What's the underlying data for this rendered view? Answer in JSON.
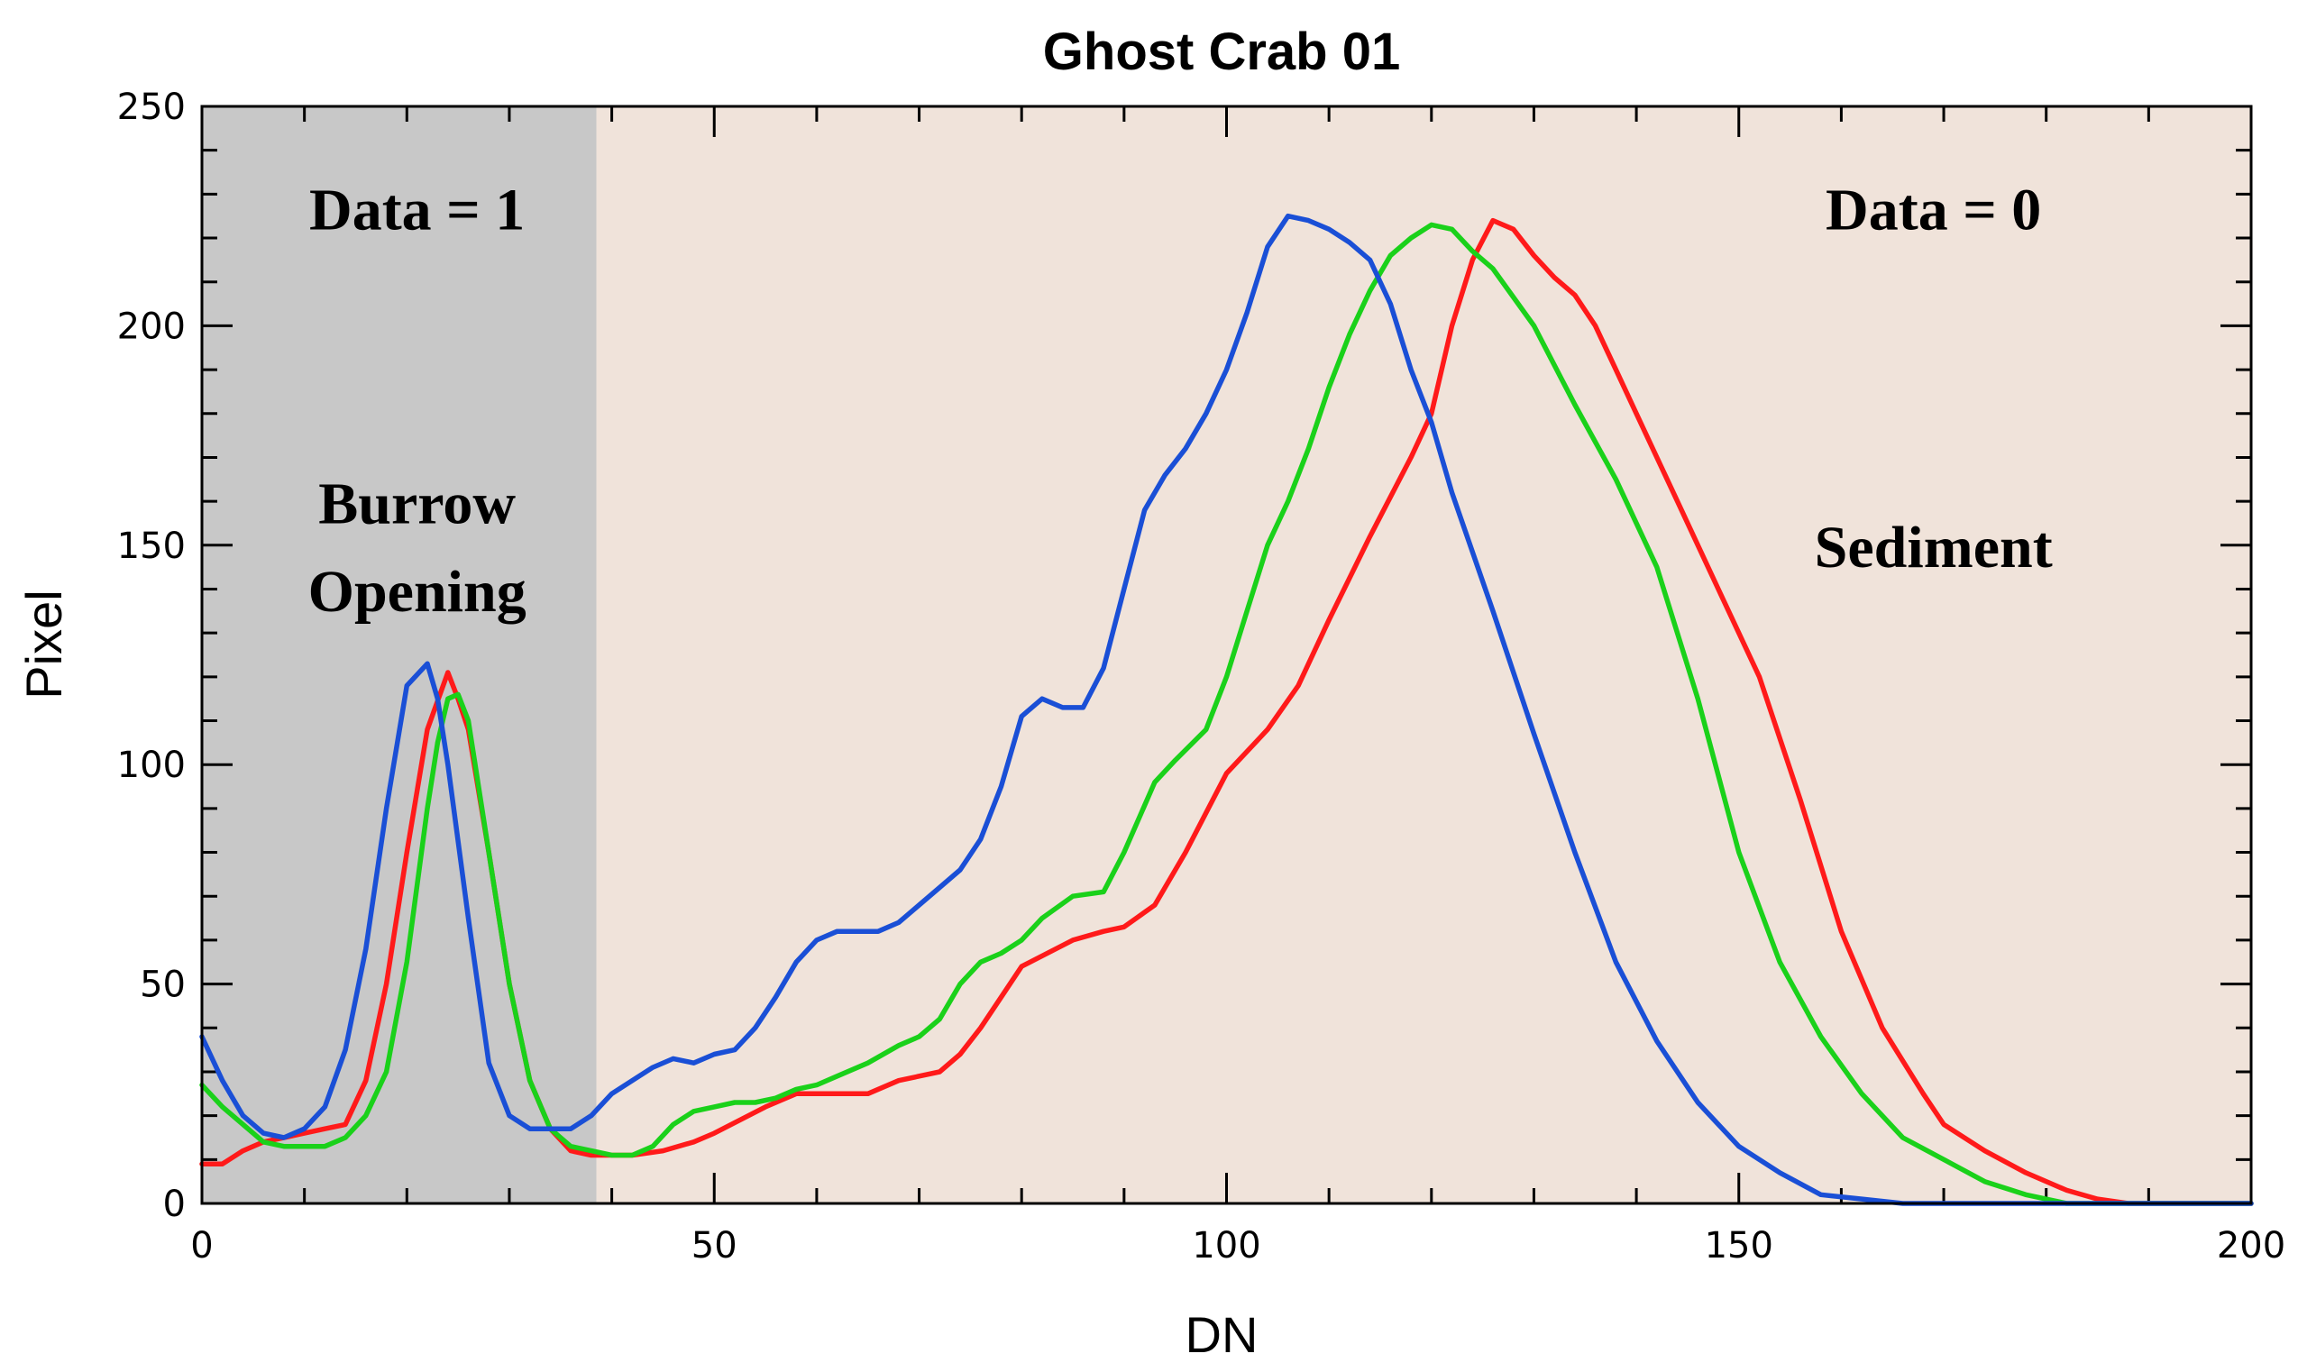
{
  "chart_data": {
    "type": "line",
    "title": "Ghost Crab 01",
    "xlabel": "DN",
    "ylabel": "Pixel",
    "xlim": [
      0,
      200
    ],
    "ylim": [
      0,
      250
    ],
    "xticks": [
      0,
      50,
      100,
      150,
      200
    ],
    "yticks": [
      0,
      50,
      100,
      150,
      200,
      250
    ],
    "colors": {
      "red": "#ff1a1a",
      "green": "#1ad11a",
      "blue": "#1a4fd6",
      "region_burrow": "#c8c8c8",
      "region_sediment": "#f0e3da"
    },
    "regions": [
      {
        "name": "burrow",
        "x_start": 0,
        "x_end": 38.5,
        "color_key": "region_burrow"
      },
      {
        "name": "sediment",
        "x_start": 38.5,
        "x_end": 200,
        "color_key": "region_sediment"
      }
    ],
    "annotations": {
      "data1": {
        "text": "Data = 1",
        "x": 21,
        "y": 222
      },
      "burrow1": {
        "text": "Burrow",
        "x": 21,
        "y": 155
      },
      "burrow2": {
        "text": "Opening",
        "x": 21,
        "y": 135
      },
      "data0": {
        "text": "Data = 0",
        "x": 169,
        "y": 222
      },
      "sediment": {
        "text": "Sediment",
        "x": 169,
        "y": 145
      }
    },
    "series": [
      {
        "name": "red",
        "color_key": "red",
        "points": [
          [
            0,
            9
          ],
          [
            2,
            9
          ],
          [
            4,
            12
          ],
          [
            6,
            14
          ],
          [
            8,
            15
          ],
          [
            10,
            16
          ],
          [
            12,
            17
          ],
          [
            14,
            18
          ],
          [
            16,
            28
          ],
          [
            18,
            50
          ],
          [
            20,
            80
          ],
          [
            22,
            108
          ],
          [
            24,
            121
          ],
          [
            25,
            115
          ],
          [
            26,
            108
          ],
          [
            28,
            80
          ],
          [
            30,
            50
          ],
          [
            32,
            28
          ],
          [
            34,
            17
          ],
          [
            36,
            12
          ],
          [
            38,
            11
          ],
          [
            40,
            11
          ],
          [
            42,
            11
          ],
          [
            45,
            12
          ],
          [
            48,
            14
          ],
          [
            50,
            16
          ],
          [
            55,
            22
          ],
          [
            58,
            25
          ],
          [
            60,
            25
          ],
          [
            65,
            25
          ],
          [
            68,
            28
          ],
          [
            72,
            30
          ],
          [
            74,
            34
          ],
          [
            76,
            40
          ],
          [
            78,
            47
          ],
          [
            80,
            54
          ],
          [
            85,
            60
          ],
          [
            88,
            62
          ],
          [
            90,
            63
          ],
          [
            93,
            68
          ],
          [
            96,
            80
          ],
          [
            100,
            98
          ],
          [
            104,
            108
          ],
          [
            107,
            118
          ],
          [
            110,
            133
          ],
          [
            114,
            152
          ],
          [
            118,
            170
          ],
          [
            120,
            180
          ],
          [
            122,
            200
          ],
          [
            124,
            215
          ],
          [
            126,
            224
          ],
          [
            128,
            222
          ],
          [
            130,
            216
          ],
          [
            132,
            211
          ],
          [
            134,
            207
          ],
          [
            136,
            200
          ],
          [
            138,
            190
          ],
          [
            140,
            180
          ],
          [
            144,
            160
          ],
          [
            148,
            140
          ],
          [
            152,
            120
          ],
          [
            156,
            92
          ],
          [
            160,
            62
          ],
          [
            164,
            40
          ],
          [
            168,
            25
          ],
          [
            170,
            18
          ],
          [
            174,
            12
          ],
          [
            178,
            7
          ],
          [
            182,
            3
          ],
          [
            185,
            1
          ],
          [
            188,
            0
          ],
          [
            200,
            0
          ]
        ]
      },
      {
        "name": "green",
        "color_key": "green",
        "points": [
          [
            0,
            27
          ],
          [
            2,
            22
          ],
          [
            4,
            18
          ],
          [
            6,
            14
          ],
          [
            8,
            13
          ],
          [
            10,
            13
          ],
          [
            12,
            13
          ],
          [
            14,
            15
          ],
          [
            16,
            20
          ],
          [
            18,
            30
          ],
          [
            20,
            55
          ],
          [
            22,
            90
          ],
          [
            23,
            105
          ],
          [
            24,
            115
          ],
          [
            25,
            116
          ],
          [
            26,
            110
          ],
          [
            28,
            80
          ],
          [
            30,
            50
          ],
          [
            32,
            28
          ],
          [
            34,
            17
          ],
          [
            36,
            13
          ],
          [
            38,
            12
          ],
          [
            40,
            11
          ],
          [
            42,
            11
          ],
          [
            44,
            13
          ],
          [
            46,
            18
          ],
          [
            48,
            21
          ],
          [
            50,
            22
          ],
          [
            52,
            23
          ],
          [
            54,
            23
          ],
          [
            56,
            24
          ],
          [
            58,
            26
          ],
          [
            60,
            27
          ],
          [
            62,
            29
          ],
          [
            65,
            32
          ],
          [
            68,
            36
          ],
          [
            70,
            38
          ],
          [
            72,
            42
          ],
          [
            74,
            50
          ],
          [
            76,
            55
          ],
          [
            78,
            57
          ],
          [
            80,
            60
          ],
          [
            82,
            65
          ],
          [
            85,
            70
          ],
          [
            88,
            71
          ],
          [
            90,
            80
          ],
          [
            93,
            96
          ],
          [
            95,
            101
          ],
          [
            98,
            108
          ],
          [
            100,
            120
          ],
          [
            102,
            135
          ],
          [
            104,
            150
          ],
          [
            106,
            160
          ],
          [
            108,
            172
          ],
          [
            110,
            186
          ],
          [
            112,
            198
          ],
          [
            114,
            208
          ],
          [
            116,
            216
          ],
          [
            118,
            220
          ],
          [
            120,
            223
          ],
          [
            122,
            222
          ],
          [
            124,
            217
          ],
          [
            126,
            213
          ],
          [
            130,
            200
          ],
          [
            134,
            182
          ],
          [
            138,
            165
          ],
          [
            142,
            145
          ],
          [
            146,
            115
          ],
          [
            150,
            80
          ],
          [
            154,
            55
          ],
          [
            158,
            38
          ],
          [
            162,
            25
          ],
          [
            166,
            15
          ],
          [
            170,
            10
          ],
          [
            174,
            5
          ],
          [
            178,
            2
          ],
          [
            182,
            0
          ],
          [
            200,
            0
          ]
        ]
      },
      {
        "name": "blue",
        "color_key": "blue",
        "points": [
          [
            0,
            38
          ],
          [
            2,
            28
          ],
          [
            4,
            20
          ],
          [
            6,
            16
          ],
          [
            8,
            15
          ],
          [
            10,
            17
          ],
          [
            12,
            22
          ],
          [
            14,
            35
          ],
          [
            16,
            58
          ],
          [
            18,
            90
          ],
          [
            20,
            118
          ],
          [
            22,
            123
          ],
          [
            23,
            115
          ],
          [
            24,
            100
          ],
          [
            26,
            65
          ],
          [
            28,
            32
          ],
          [
            30,
            20
          ],
          [
            32,
            17
          ],
          [
            34,
            17
          ],
          [
            36,
            17
          ],
          [
            38,
            20
          ],
          [
            40,
            25
          ],
          [
            42,
            28
          ],
          [
            44,
            31
          ],
          [
            46,
            33
          ],
          [
            48,
            32
          ],
          [
            50,
            34
          ],
          [
            52,
            35
          ],
          [
            54,
            40
          ],
          [
            56,
            47
          ],
          [
            58,
            55
          ],
          [
            60,
            60
          ],
          [
            62,
            62
          ],
          [
            64,
            62
          ],
          [
            66,
            62
          ],
          [
            68,
            64
          ],
          [
            70,
            68
          ],
          [
            72,
            72
          ],
          [
            74,
            76
          ],
          [
            76,
            83
          ],
          [
            78,
            95
          ],
          [
            80,
            111
          ],
          [
            82,
            115
          ],
          [
            84,
            113
          ],
          [
            86,
            113
          ],
          [
            88,
            122
          ],
          [
            90,
            140
          ],
          [
            92,
            158
          ],
          [
            94,
            166
          ],
          [
            96,
            172
          ],
          [
            98,
            180
          ],
          [
            100,
            190
          ],
          [
            102,
            203
          ],
          [
            104,
            218
          ],
          [
            106,
            225
          ],
          [
            108,
            224
          ],
          [
            110,
            222
          ],
          [
            112,
            219
          ],
          [
            114,
            215
          ],
          [
            116,
            205
          ],
          [
            118,
            190
          ],
          [
            120,
            178
          ],
          [
            122,
            162
          ],
          [
            126,
            135
          ],
          [
            130,
            107
          ],
          [
            134,
            80
          ],
          [
            138,
            55
          ],
          [
            142,
            37
          ],
          [
            146,
            23
          ],
          [
            150,
            13
          ],
          [
            154,
            7
          ],
          [
            158,
            2
          ],
          [
            162,
            1
          ],
          [
            166,
            0
          ],
          [
            200,
            0
          ]
        ]
      }
    ]
  }
}
